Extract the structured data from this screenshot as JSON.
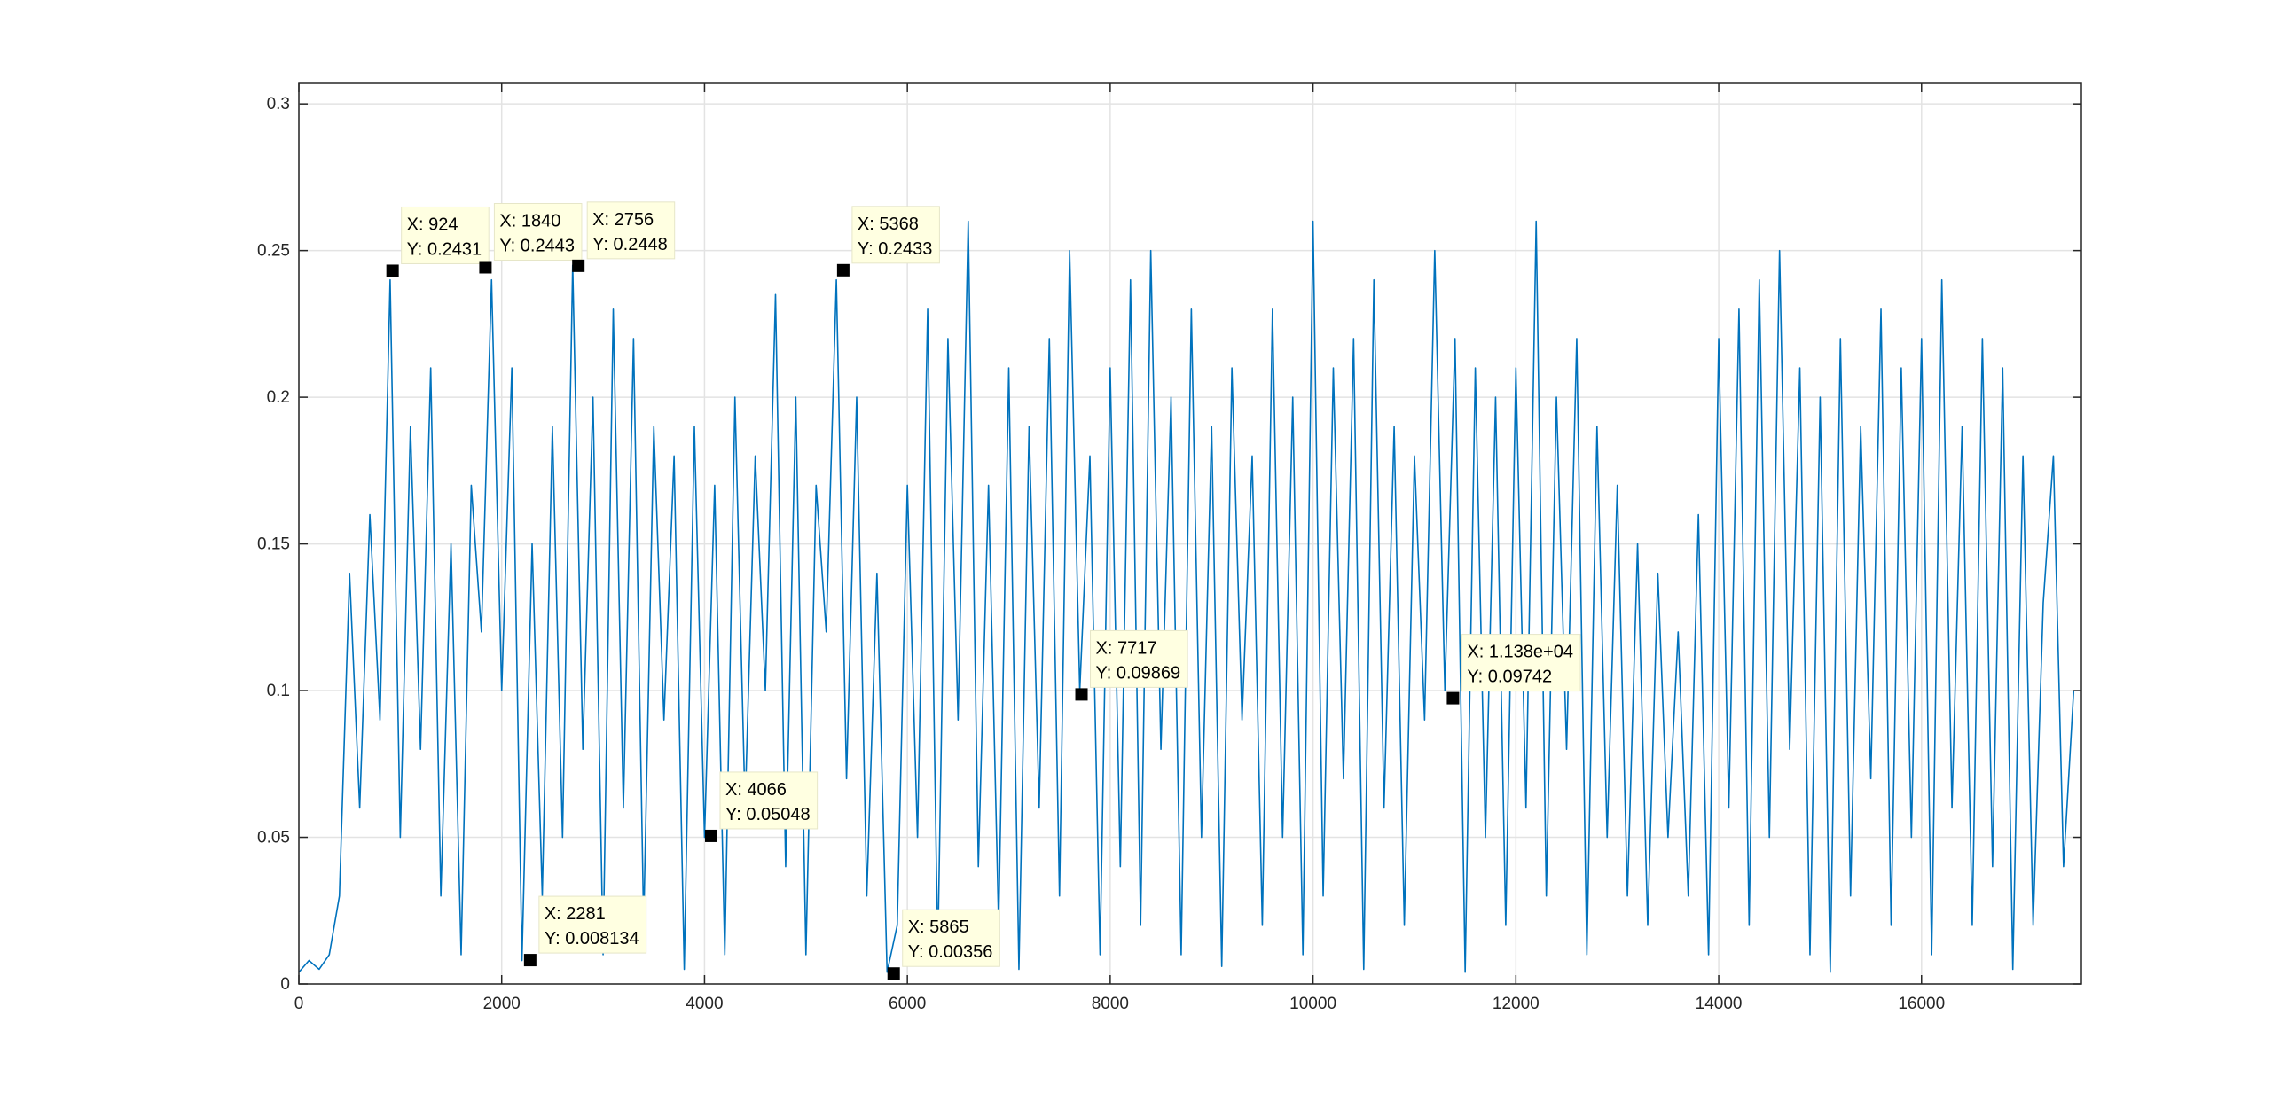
{
  "chart_data": {
    "type": "line",
    "x": [
      0,
      100,
      200,
      300,
      400,
      500,
      600,
      700,
      800,
      900,
      1000,
      1100,
      1200,
      1300,
      1400,
      1500,
      1600,
      1700,
      1800,
      1900,
      2000,
      2100,
      2200,
      2300,
      2400,
      2500,
      2600,
      2700,
      2800,
      2900,
      3000,
      3100,
      3200,
      3300,
      3400,
      3500,
      3600,
      3700,
      3800,
      3900,
      4000,
      4100,
      4200,
      4300,
      4400,
      4500,
      4600,
      4700,
      4800,
      4900,
      5000,
      5100,
      5200,
      5300,
      5400,
      5500,
      5600,
      5700,
      5800,
      5900,
      6000,
      6100,
      6200,
      6300,
      6400,
      6500,
      6600,
      6700,
      6800,
      6900,
      7000,
      7100,
      7200,
      7300,
      7400,
      7500,
      7600,
      7700,
      7800,
      7900,
      8000,
      8100,
      8200,
      8300,
      8400,
      8500,
      8600,
      8700,
      8800,
      8900,
      9000,
      9100,
      9200,
      9300,
      9400,
      9500,
      9600,
      9700,
      9800,
      9900,
      10000,
      10100,
      10200,
      10300,
      10400,
      10500,
      10600,
      10700,
      10800,
      10900,
      11000,
      11100,
      11200,
      11300,
      11400,
      11500,
      11600,
      11700,
      11800,
      11900,
      12000,
      12100,
      12200,
      12300,
      12400,
      12500,
      12600,
      12700,
      12800,
      12900,
      13000,
      13100,
      13200,
      13300,
      13400,
      13500,
      13600,
      13700,
      13800,
      13900,
      14000,
      14100,
      14200,
      14300,
      14400,
      14500,
      14600,
      14700,
      14800,
      14900,
      15000,
      15100,
      15200,
      15300,
      15400,
      15500,
      15600,
      15700,
      15800,
      15900,
      16000,
      16100,
      16200,
      16300,
      16400,
      16500,
      16600,
      16700,
      16800,
      16900,
      17000,
      17100,
      17200,
      17300,
      17400,
      17500
    ],
    "series": [
      {
        "color": "#0072bd",
        "values": [
          0.004,
          0.008,
          0.005,
          0.01,
          0.03,
          0.14,
          0.06,
          0.16,
          0.09,
          0.24,
          0.05,
          0.19,
          0.08,
          0.21,
          0.03,
          0.15,
          0.01,
          0.17,
          0.12,
          0.24,
          0.1,
          0.21,
          0.008,
          0.15,
          0.03,
          0.19,
          0.05,
          0.245,
          0.08,
          0.2,
          0.01,
          0.23,
          0.06,
          0.22,
          0.02,
          0.19,
          0.09,
          0.18,
          0.005,
          0.19,
          0.05,
          0.17,
          0.01,
          0.2,
          0.06,
          0.18,
          0.1,
          0.235,
          0.04,
          0.2,
          0.01,
          0.17,
          0.12,
          0.24,
          0.07,
          0.2,
          0.03,
          0.14,
          0.004,
          0.02,
          0.17,
          0.05,
          0.23,
          0.01,
          0.22,
          0.09,
          0.26,
          0.04,
          0.17,
          0.02,
          0.21,
          0.005,
          0.19,
          0.06,
          0.22,
          0.03,
          0.25,
          0.1,
          0.18,
          0.01,
          0.21,
          0.04,
          0.24,
          0.02,
          0.25,
          0.08,
          0.2,
          0.01,
          0.23,
          0.05,
          0.19,
          0.006,
          0.21,
          0.09,
          0.18,
          0.02,
          0.23,
          0.05,
          0.2,
          0.01,
          0.26,
          0.03,
          0.21,
          0.07,
          0.22,
          0.005,
          0.24,
          0.06,
          0.19,
          0.02,
          0.18,
          0.09,
          0.25,
          0.1,
          0.22,
          0.004,
          0.21,
          0.05,
          0.2,
          0.02,
          0.21,
          0.06,
          0.26,
          0.03,
          0.2,
          0.08,
          0.22,
          0.01,
          0.19,
          0.05,
          0.17,
          0.03,
          0.15,
          0.02,
          0.14,
          0.05,
          0.12,
          0.03,
          0.16,
          0.01,
          0.22,
          0.06,
          0.23,
          0.02,
          0.24,
          0.05,
          0.25,
          0.08,
          0.21,
          0.01,
          0.2,
          0.004,
          0.22,
          0.03,
          0.19,
          0.07,
          0.23,
          0.02,
          0.21,
          0.05,
          0.22,
          0.01,
          0.24,
          0.06,
          0.19,
          0.02,
          0.22,
          0.04,
          0.21,
          0.005,
          0.18,
          0.02,
          0.13,
          0.18,
          0.04,
          0.1
        ]
      }
    ],
    "xlim": [
      0,
      17576
    ],
    "ylim": [
      0,
      0.307
    ],
    "xticks": [
      0,
      2000,
      4000,
      6000,
      8000,
      10000,
      12000,
      14000,
      16000
    ],
    "yticks": [
      0,
      0.05,
      0.1,
      0.15,
      0.2,
      0.25,
      0.3
    ],
    "grid": true,
    "datatips": [
      {
        "x": 924,
        "y": 0.2431,
        "x_label": "X: 924",
        "y_label": "Y: 0.2431"
      },
      {
        "x": 1840,
        "y": 0.2443,
        "x_label": "X: 1840",
        "y_label": "Y: 0.2443"
      },
      {
        "x": 2756,
        "y": 0.2448,
        "x_label": "X: 2756",
        "y_label": "Y: 0.2448"
      },
      {
        "x": 2281,
        "y": 0.008134,
        "x_label": "X: 2281",
        "y_label": "Y: 0.008134"
      },
      {
        "x": 4066,
        "y": 0.05048,
        "x_label": "X: 4066",
        "y_label": "Y: 0.05048"
      },
      {
        "x": 5368,
        "y": 0.2433,
        "x_label": "X: 5368",
        "y_label": "Y: 0.2433"
      },
      {
        "x": 5865,
        "y": 0.00356,
        "x_label": "X: 5865",
        "y_label": "Y: 0.00356"
      },
      {
        "x": 7717,
        "y": 0.09869,
        "x_label": "X: 7717",
        "y_label": "Y: 0.09869"
      },
      {
        "x": 11380,
        "y": 0.09742,
        "x_label": "X: 1.138e+04",
        "y_label": "Y: 0.09742"
      }
    ]
  }
}
